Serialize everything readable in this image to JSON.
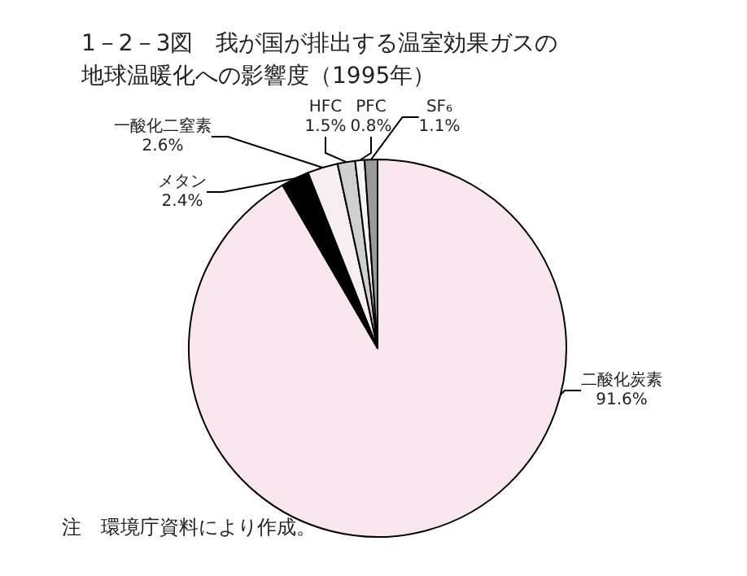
{
  "chart_data": {
    "type": "pie",
    "title": "1－2－3図　我が国が排出する温室効果ガスの地球温暖化への影響度（1995年）",
    "categories": [
      "二酸化炭素",
      "メタン",
      "一酸化二窒素",
      "HFC",
      "PFC",
      "SF₆"
    ],
    "values": [
      91.6,
      2.4,
      2.6,
      1.5,
      0.8,
      1.1
    ],
    "colors": [
      "#f9e6f0",
      "#000000",
      "#f6eef2",
      "#d0d0d0",
      "#f4f4f4",
      "#9a9a9a"
    ],
    "value_labels": [
      "91.6%",
      "2.4%",
      "2.6%",
      "1.5%",
      "0.8%",
      "1.1%"
    ],
    "legend": false,
    "annotations": [
      "注　環境庁資料により作成。"
    ]
  }
}
